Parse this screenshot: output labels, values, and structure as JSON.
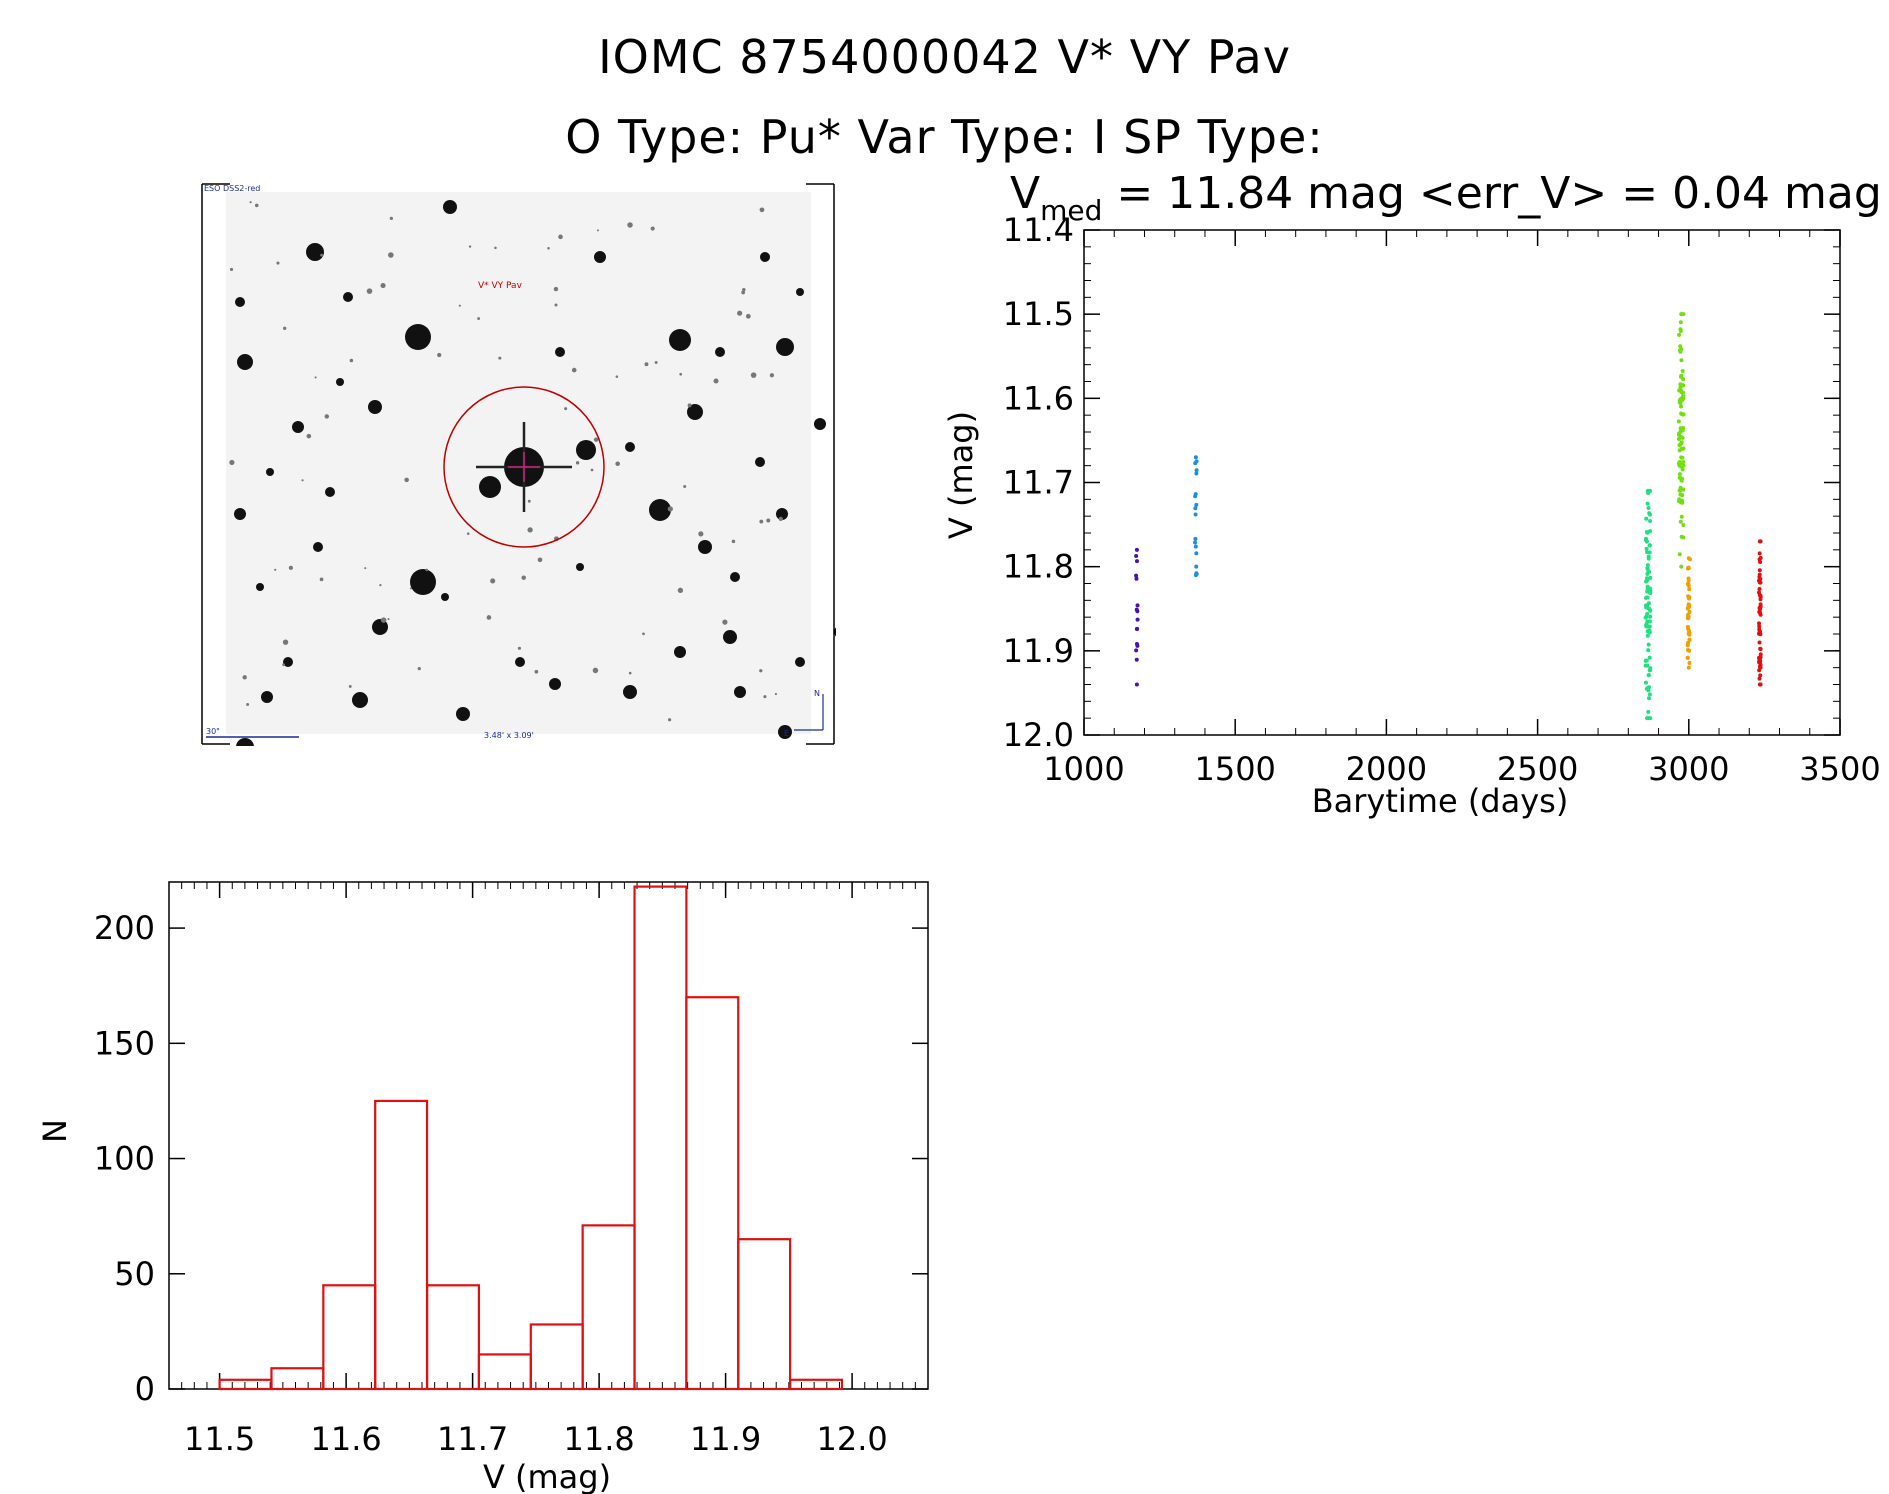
{
  "header": {
    "line1": "IOMC 8754000042    V* VY Pav",
    "line2": "O Type: Pu*   Var Type: I   SP Type:"
  },
  "image_panel": {
    "survey_label": "ESO DSS2-red",
    "target_label": "V* VY Pav",
    "scale_label": "30\"",
    "size_label": "3.48' x 3.09'",
    "north_label": "N",
    "east_label": "E"
  },
  "colors": {
    "histogram": "#e01010",
    "circle": "#c00000",
    "series": [
      "#4b10b0",
      "#1a90e0",
      "#20e080",
      "#70e010",
      "#f0a000",
      "#e01010"
    ]
  },
  "chart_data": [
    {
      "type": "scatter",
      "title_main": "V",
      "title_sub": "med",
      "title_rest": " = 11.84 mag <err_V> = 0.04 mag",
      "xlabel": "Barytime (days)",
      "ylabel": "V (mag)",
      "xlim": [
        1000,
        3500
      ],
      "ylim": [
        12.0,
        11.4
      ],
      "xticks": [
        "1000",
        "1500",
        "2000",
        "2500",
        "3000",
        "3500"
      ],
      "yticks": [
        "11.4",
        "11.5",
        "11.6",
        "11.7",
        "11.8",
        "11.9",
        "12.0"
      ],
      "series": [
        {
          "color": "#4b10b0",
          "x_center": 1175,
          "x_spread": 3,
          "ymin": 11.78,
          "ymax": 11.94,
          "n": 14
        },
        {
          "color": "#1a90e0",
          "x_center": 1370,
          "x_spread": 3,
          "ymin": 11.67,
          "ymax": 11.81,
          "n": 16
        },
        {
          "color": "#20e080",
          "x_center": 2865,
          "x_spread": 8,
          "ymin": 11.71,
          "ymax": 11.98,
          "n": 90
        },
        {
          "color": "#70e010",
          "x_center": 2975,
          "x_spread": 8,
          "ymin": 11.5,
          "ymax": 11.8,
          "n": 90
        },
        {
          "color": "#f0a000",
          "x_center": 3000,
          "x_spread": 4,
          "ymin": 11.79,
          "ymax": 11.92,
          "n": 40
        },
        {
          "color": "#e01010",
          "x_center": 3235,
          "x_spread": 3,
          "ymin": 11.77,
          "ymax": 11.94,
          "n": 60
        }
      ]
    },
    {
      "type": "bar",
      "xlabel": "V (mag)",
      "ylabel": "N",
      "xlim": [
        11.46,
        12.06
      ],
      "ylim": [
        0,
        220
      ],
      "xticks": [
        "11.5",
        "11.6",
        "11.7",
        "11.8",
        "11.9",
        "12.0"
      ],
      "yticks": [
        "0",
        "50",
        "100",
        "150",
        "200"
      ],
      "bin_width": 0.041,
      "bin_edges": [
        11.5,
        11.541,
        11.582,
        11.623,
        11.664,
        11.705,
        11.746,
        11.787,
        11.828,
        11.869,
        11.91,
        11.951
      ],
      "values": [
        4,
        9,
        45,
        125,
        45,
        15,
        28,
        71,
        218,
        170,
        65,
        4
      ]
    }
  ]
}
